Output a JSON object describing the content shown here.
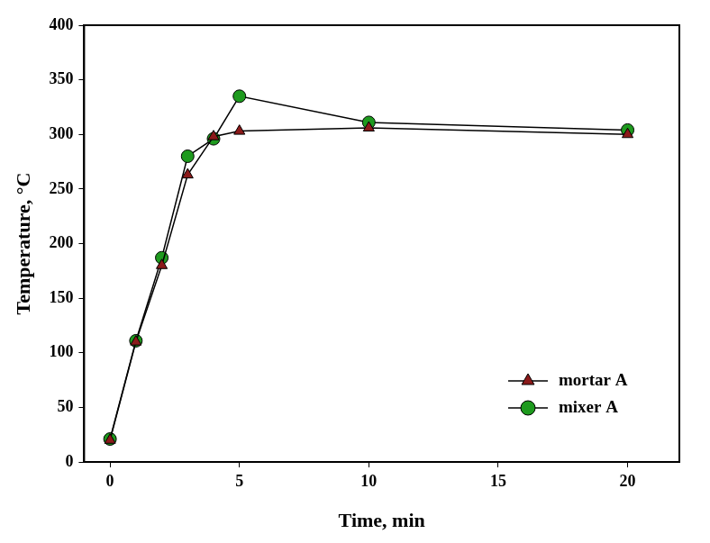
{
  "chart_data": {
    "type": "line",
    "x_label": "Time, min",
    "y_label": "Temperature, °C",
    "x": [
      0,
      1,
      2,
      3,
      4,
      5,
      10,
      20
    ],
    "series": [
      {
        "name": "mortar A",
        "color": "#8b1a1a",
        "marker": "triangle",
        "line_style": "solid",
        "values": [
          20,
          110,
          180,
          263,
          298,
          303,
          306,
          300
        ]
      },
      {
        "name": "mixer A",
        "color": "#1e9a1e",
        "marker": "circle",
        "line_style": "solid",
        "values": [
          21,
          111,
          187,
          280,
          296,
          335,
          311,
          304
        ]
      }
    ],
    "xlim": [
      -1,
      22
    ],
    "xticks": [
      0,
      5,
      10,
      15,
      20
    ],
    "ylim": [
      0,
      400
    ],
    "yticks": [
      0,
      50,
      100,
      150,
      200,
      250,
      300,
      350,
      400
    ],
    "grid": false,
    "legend": "lower right"
  }
}
